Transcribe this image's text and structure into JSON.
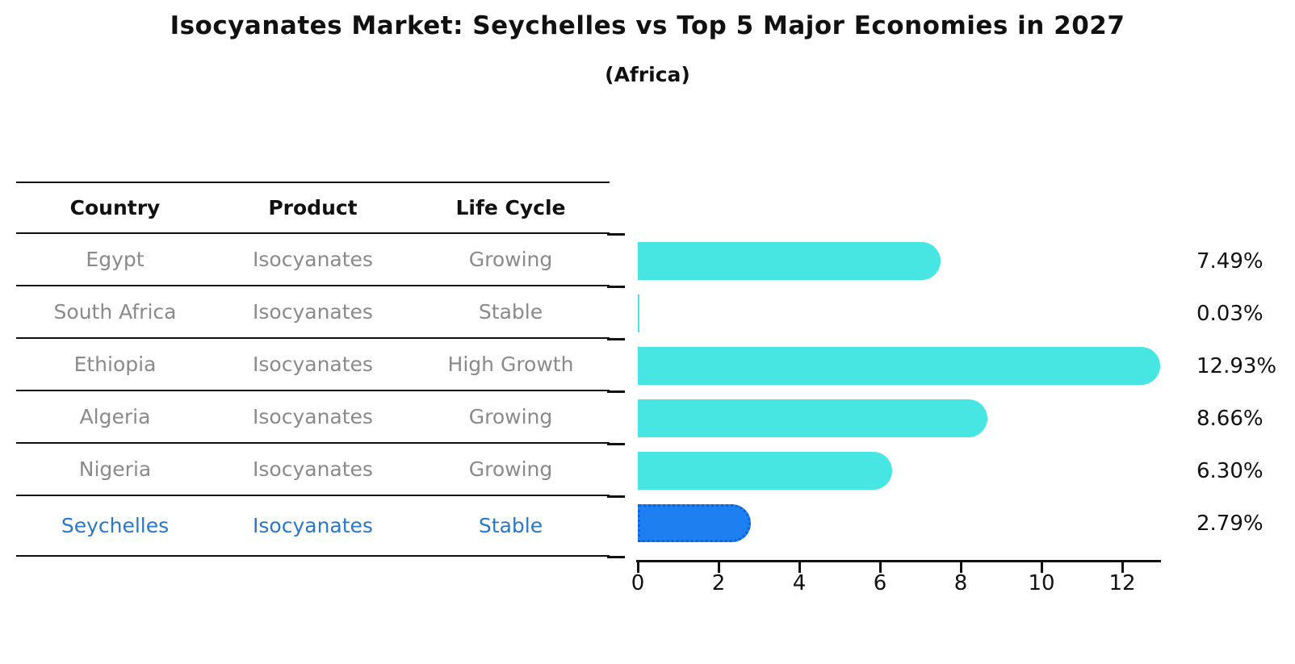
{
  "title": "Isocyanates Market: Seychelles vs Top 5 Major Economies in 2027",
  "subtitle": "(Africa)",
  "table": {
    "headers": [
      "Country",
      "Product",
      "Life Cycle"
    ],
    "rows": [
      {
        "country": "Egypt",
        "product": "Isocyanates",
        "life_cycle": "Growing",
        "share": "7.49%",
        "highlighted": false
      },
      {
        "country": "South Africa",
        "product": "Isocyanates",
        "life_cycle": "Stable",
        "share": "0.03%",
        "highlighted": false
      },
      {
        "country": "Ethiopia",
        "product": "Isocyanates",
        "life_cycle": "High Growth",
        "share": "12.93%",
        "highlighted": false
      },
      {
        "country": "Algeria",
        "product": "Isocyanates",
        "life_cycle": "Growing",
        "share": "8.66%",
        "highlighted": false
      },
      {
        "country": "Nigeria",
        "product": "Isocyanates",
        "life_cycle": "Growing",
        "share": "6.30%",
        "highlighted": false
      },
      {
        "country": "Seychelles",
        "product": "Isocyanates",
        "life_cycle": "Stable",
        "share": "2.79%",
        "highlighted": true
      }
    ]
  },
  "chart_data": {
    "type": "bar",
    "orientation": "horizontal",
    "title": "Isocyanates Market: Seychelles vs Top 5 Major Economies in 2027",
    "subtitle": "(Africa)",
    "categories": [
      "Egypt",
      "South Africa",
      "Ethiopia",
      "Algeria",
      "Nigeria",
      "Seychelles"
    ],
    "values": [
      7.49,
      0.03,
      12.93,
      8.66,
      6.3,
      2.79
    ],
    "value_labels": [
      "7.49%",
      "0.03%",
      "12.93%",
      "8.66%",
      "6.30%",
      "2.79%"
    ],
    "x_ticks": [
      0,
      2,
      4,
      6,
      8,
      10,
      12
    ],
    "xlim": [
      0,
      12.9
    ],
    "grid": false,
    "legend": false,
    "highlight_index": 5,
    "bar_color": "#48e6e3",
    "highlight_bar_color": "#1e80f0",
    "highlight_border_color": "#0d63d9"
  },
  "colors": {
    "background": "#ffffff",
    "ink": "#111111",
    "table_text": "#8a8a8a",
    "highlight_text": "#2878c8",
    "bar": "#48e6e3",
    "highlight_bar": "#1e80f0"
  }
}
